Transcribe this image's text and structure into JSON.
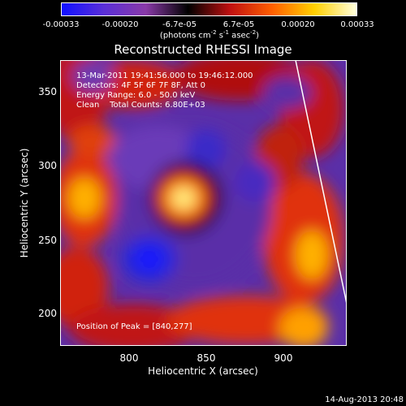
{
  "colorbar": {
    "ticks": [
      "-0.00033",
      "-0.00020",
      "-6.7e-05",
      "6.7e-05",
      "0.00020",
      "0.00033"
    ],
    "unit_main": "(photons cm",
    "unit_sup1": "-2",
    "unit_s": " s",
    "unit_sup2": "-1",
    "unit_as": " asec",
    "unit_sup3": "-2",
    "unit_end": ")",
    "colors": [
      "#1010ff",
      "#5a2fd8",
      "#8a3aa8",
      "#000000",
      "#c01010",
      "#ff6000",
      "#ffd000",
      "#ffffe0"
    ]
  },
  "title": "Reconstructed RHESSI Image",
  "info": {
    "line1": "13-Mar-2011 19:41:56.000 to 19:46:12.000",
    "line2": "Detectors: 4F 5F 6F 7F 8F, Att 0",
    "line3": "Energy Range: 6.0 - 50.0 keV",
    "line4": "Clean    Total Counts: 6.80E+03",
    "peak": "Position of Peak = [840,277]"
  },
  "axes": {
    "xlabel": "Heliocentric X (arcsec)",
    "ylabel": "Heliocentric Y (arcsec)",
    "xticks": [
      "800",
      "850",
      "900"
    ],
    "yticks": [
      "350",
      "300",
      "250",
      "200"
    ],
    "xrange": [
      754,
      940
    ],
    "yrange": [
      155,
      370
    ]
  },
  "stamp": "14-Aug-2013 20:48"
}
